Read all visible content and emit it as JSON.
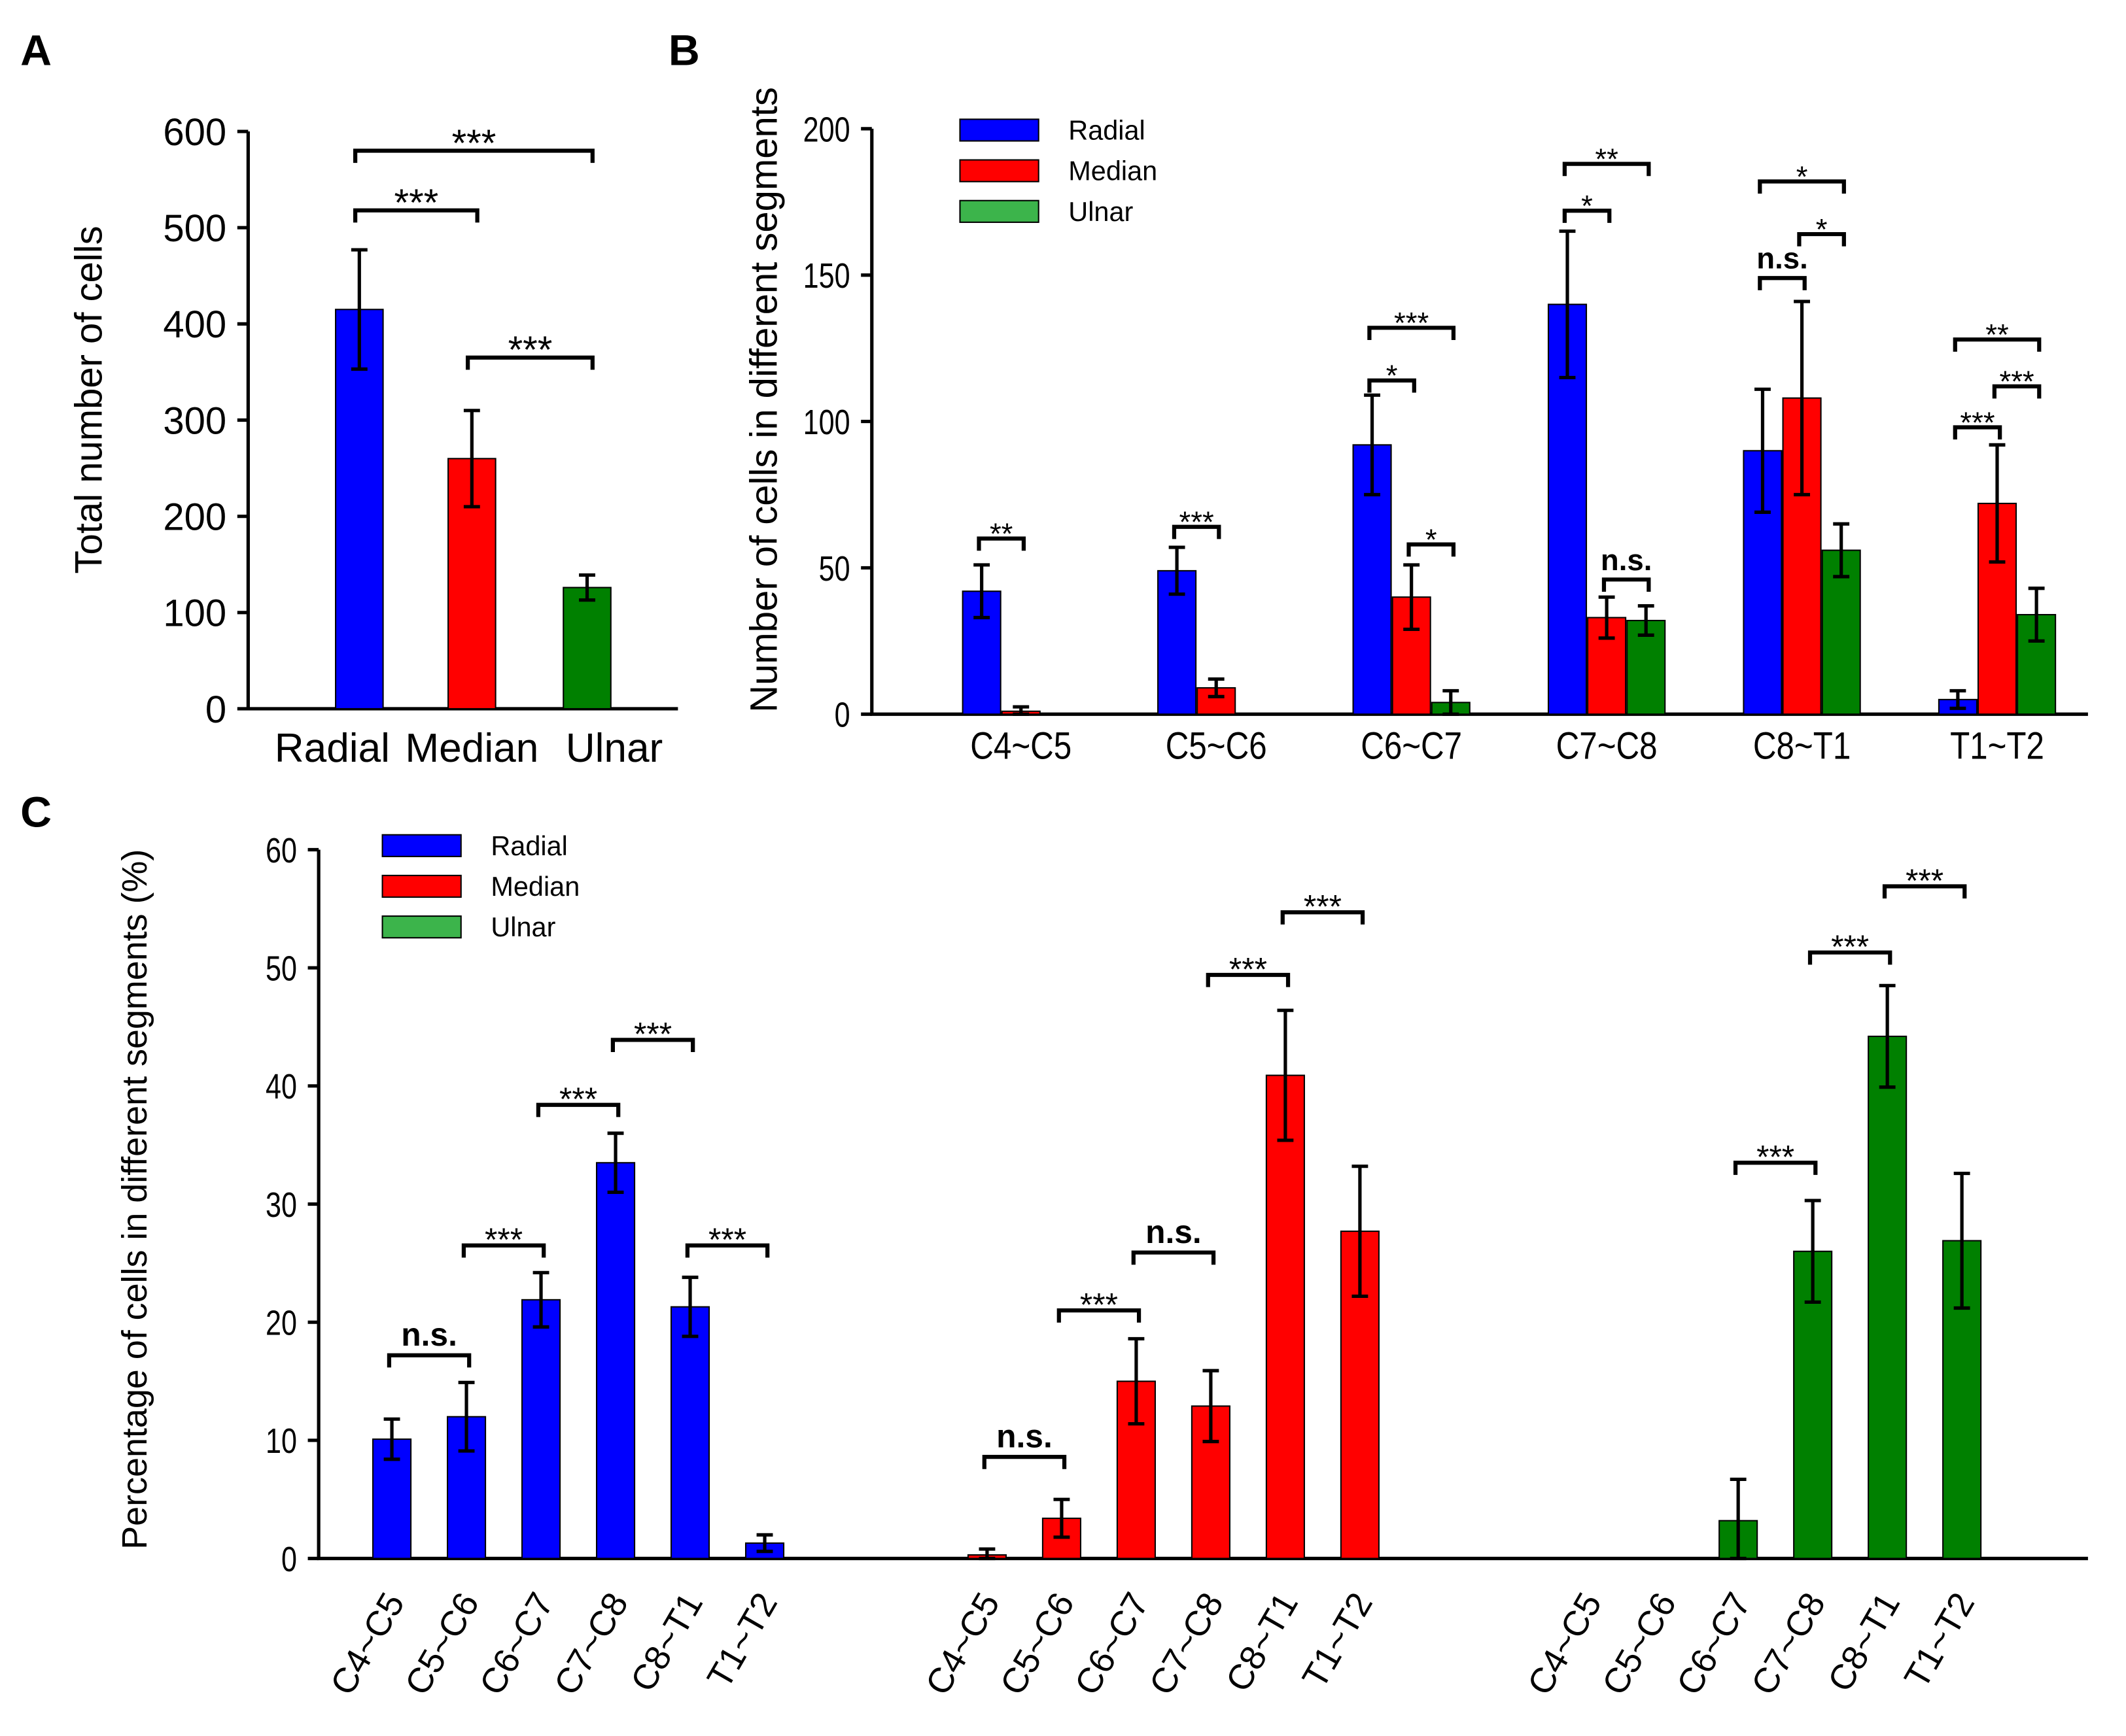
{
  "colors": {
    "Radial": "#0000ff",
    "Median": "#ff0000",
    "Ulnar": "#008000",
    "UlnarLegend": "#3cb44b"
  },
  "chart_data": [
    {
      "panel": "A",
      "type": "bar",
      "ylabel": "Total number of cells",
      "ylim": [
        0,
        600
      ],
      "yticks": [
        "0",
        "100",
        "200",
        "300",
        "400",
        "500",
        "600"
      ],
      "categories": [
        "Radial",
        "Median",
        "Ulnar"
      ],
      "values": [
        415,
        260,
        126
      ],
      "errors": [
        62,
        50,
        13
      ],
      "significance": [
        {
          "a": 0,
          "b": 2,
          "y": 580,
          "label": "***"
        },
        {
          "a": 0,
          "b": 1,
          "y": 518,
          "label": "***"
        },
        {
          "a": 1,
          "b": 2,
          "y": 365,
          "label": "***"
        }
      ]
    },
    {
      "panel": "B",
      "type": "bar",
      "ylabel": "Number of cells in different segments",
      "ylim": [
        0,
        200
      ],
      "yticks": [
        "0",
        "50",
        "100",
        "150",
        "200"
      ],
      "categories": [
        "C4~C5",
        "C5~C6",
        "C6~C7",
        "C7~C8",
        "C8~T1",
        "T1~T2"
      ],
      "legend": [
        "Radial",
        "Median",
        "Ulnar"
      ],
      "series": [
        {
          "name": "Radial",
          "values": [
            42,
            49,
            92,
            140,
            90,
            5
          ],
          "errors": [
            9,
            8,
            17,
            25,
            21,
            3
          ]
        },
        {
          "name": "Median",
          "values": [
            1,
            9,
            40,
            33,
            108,
            72
          ],
          "errors": [
            1.5,
            3,
            11,
            7,
            33,
            20
          ]
        },
        {
          "name": "Ulnar",
          "values": [
            0,
            0,
            4,
            32,
            56,
            34
          ],
          "errors": [
            0,
            0,
            4,
            5,
            9,
            9
          ]
        }
      ],
      "significance": [
        {
          "g": 0,
          "a": 0,
          "b": 1,
          "y": 60,
          "label": "**"
        },
        {
          "g": 1,
          "a": 0,
          "b": 1,
          "y": 64,
          "label": "***"
        },
        {
          "g": 2,
          "a": 0,
          "b": 1,
          "y": 114,
          "label": "*"
        },
        {
          "g": 2,
          "a": 0,
          "b": 2,
          "y": 132,
          "label": "***"
        },
        {
          "g": 2,
          "a": 1,
          "b": 2,
          "y": 58,
          "label": "*"
        },
        {
          "g": 3,
          "a": 0,
          "b": 1,
          "y": 172,
          "label": "*"
        },
        {
          "g": 3,
          "a": 0,
          "b": 2,
          "y": 188,
          "label": "**"
        },
        {
          "g": 3,
          "a": 1,
          "b": 2,
          "y": 46,
          "label": "n.s."
        },
        {
          "g": 4,
          "a": 0,
          "b": 1,
          "y": 149,
          "label": "n.s."
        },
        {
          "g": 4,
          "a": 1,
          "b": 2,
          "y": 164,
          "label": "*"
        },
        {
          "g": 4,
          "a": 0,
          "b": 2,
          "y": 182,
          "label": "*"
        },
        {
          "g": 5,
          "a": 0,
          "b": 1,
          "y": 98,
          "label": "***"
        },
        {
          "g": 5,
          "a": 1,
          "b": 2,
          "y": 112,
          "label": "***"
        },
        {
          "g": 5,
          "a": 0,
          "b": 2,
          "y": 128,
          "label": "**"
        }
      ]
    },
    {
      "panel": "C",
      "type": "bar",
      "ylabel": "Percentage of cells in different segments (%)",
      "ylim": [
        0,
        60
      ],
      "yticks": [
        "0",
        "10",
        "20",
        "30",
        "40",
        "50",
        "60"
      ],
      "categories": [
        "C4~C5",
        "C5~C6",
        "C6~C7",
        "C7~C8",
        "C8~T1",
        "T1~T2"
      ],
      "legend": [
        "Radial",
        "Median",
        "Ulnar"
      ],
      "series": [
        {
          "name": "Radial",
          "values": [
            10.1,
            12.0,
            21.9,
            33.5,
            21.3,
            1.3
          ],
          "errors": [
            1.7,
            2.9,
            2.3,
            2.5,
            2.5,
            0.7
          ]
        },
        {
          "name": "Median",
          "values": [
            0.3,
            3.4,
            15.0,
            12.9,
            40.9,
            27.7
          ],
          "errors": [
            0.5,
            1.6,
            3.6,
            3.0,
            5.5,
            5.5
          ]
        },
        {
          "name": "Ulnar",
          "values": [
            0,
            0,
            3.2,
            26.0,
            44.2,
            26.9
          ],
          "errors": [
            0,
            0,
            3.5,
            4.3,
            4.3,
            5.7
          ]
        }
      ],
      "significance": [
        {
          "s": 0,
          "a": 0,
          "b": 1,
          "y": 17.2,
          "label": "n.s."
        },
        {
          "s": 0,
          "a": 1,
          "b": 2,
          "y": 26.5,
          "label": "***"
        },
        {
          "s": 0,
          "a": 2,
          "b": 3,
          "y": 38.4,
          "label": "***"
        },
        {
          "s": 0,
          "a": 3,
          "b": 4,
          "y": 43.9,
          "label": "***"
        },
        {
          "s": 0,
          "a": 4,
          "b": 5,
          "y": 26.5,
          "label": "***"
        },
        {
          "s": 1,
          "a": 0,
          "b": 1,
          "y": 8.6,
          "label": "n.s."
        },
        {
          "s": 1,
          "a": 1,
          "b": 2,
          "y": 21.0,
          "label": "***"
        },
        {
          "s": 1,
          "a": 2,
          "b": 3,
          "y": 25.9,
          "label": "n.s."
        },
        {
          "s": 1,
          "a": 3,
          "b": 4,
          "y": 49.4,
          "label": "***"
        },
        {
          "s": 1,
          "a": 4,
          "b": 5,
          "y": 54.7,
          "label": "***"
        },
        {
          "s": 2,
          "a": 2,
          "b": 3,
          "y": 33.5,
          "label": "***"
        },
        {
          "s": 2,
          "a": 3,
          "b": 4,
          "y": 51.3,
          "label": "***"
        },
        {
          "s": 2,
          "a": 4,
          "b": 5,
          "y": 56.9,
          "label": "***"
        }
      ]
    }
  ],
  "panel_labels": [
    "A",
    "B",
    "C"
  ]
}
